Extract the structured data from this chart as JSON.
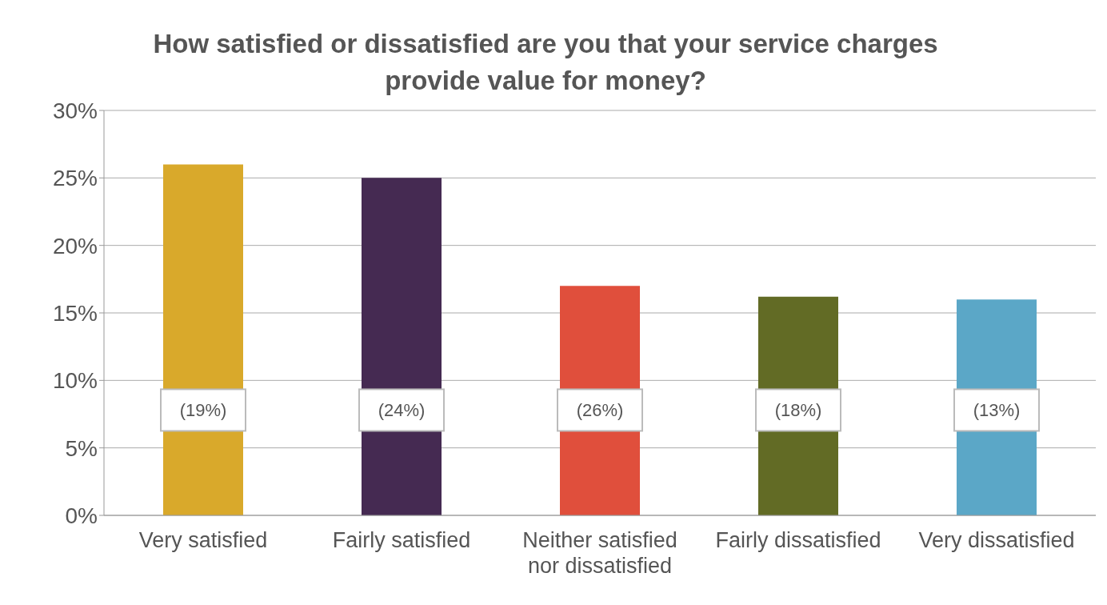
{
  "chart_data": {
    "type": "bar",
    "title": "How satisfied or dissatisfied are you that your service charges provide value for money?",
    "categories": [
      "Very satisfied",
      "Fairly satisfied",
      "Neither satisfied nor dissatisfied",
      "Fairly dissatisfied",
      "Very dissatisfied"
    ],
    "values": [
      26,
      25,
      17,
      16.2,
      16
    ],
    "colors": [
      "#d9a92b",
      "#452a52",
      "#e04f3c",
      "#626b25",
      "#5ba7c7"
    ],
    "ylim": [
      0,
      30
    ],
    "yticks": [
      {
        "value": 0,
        "label": "0%"
      },
      {
        "value": 5,
        "label": "5%"
      },
      {
        "value": 10,
        "label": "10%"
      },
      {
        "value": 15,
        "label": "15%"
      },
      {
        "value": 20,
        "label": "20%"
      },
      {
        "value": 25,
        "label": "25%"
      },
      {
        "value": 30,
        "label": "30%"
      }
    ],
    "grid": "y",
    "legend": false,
    "annotations": [
      "(19%)",
      "(24%)",
      "(26%)",
      "(18%)",
      "(13%)"
    ]
  }
}
